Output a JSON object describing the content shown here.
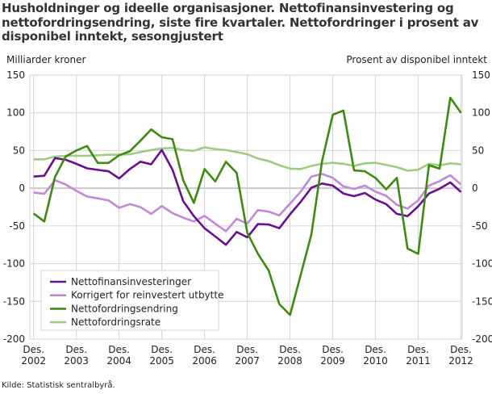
{
  "chart_data": {
    "type": "line",
    "title": "Husholdninger og ideelle organisasjoner. Nettofinansinvestering og nettofordringsendring, siste fire kvartaler. Nettofordringer i prosent av disponibel inntekt, sesongjustert",
    "ylabel_left": "Milliarder kroner",
    "ylabel_right": "Prosent av disponibel inntekt",
    "ylim": [
      -200,
      150
    ],
    "yticks": [
      150,
      100,
      50,
      0,
      -50,
      -100,
      -150,
      -200
    ],
    "xticks": [
      [
        "Des.",
        "2002"
      ],
      [
        "Des.",
        "2003"
      ],
      [
        "Des.",
        "2004"
      ],
      [
        "Des.",
        "2005"
      ],
      [
        "Des.",
        "2006"
      ],
      [
        "Des.",
        "2007"
      ],
      [
        "Des.",
        "2008"
      ],
      [
        "Des.",
        "2009"
      ],
      [
        "Des.",
        "2010"
      ],
      [
        "Des.",
        "2011"
      ],
      [
        "Des.",
        "2012"
      ]
    ],
    "x_start": "2002Q4",
    "x_end": "2012Q4",
    "grid": true,
    "legend_position": "bottom-left",
    "series": [
      {
        "name": "Nettofinansinvesteringer",
        "color": "#6a0f8e",
        "values": [
          15.5,
          16.5,
          40,
          37.7,
          32.4,
          26.4,
          24.3,
          22.5,
          13,
          25.4,
          35.2,
          31.7,
          50.7,
          24.6,
          -17,
          -37,
          -53,
          -64,
          -75,
          -58,
          -65,
          -47.5,
          -48,
          -53,
          -34.5,
          -18,
          0.7,
          6.3,
          3.5,
          -7,
          -10.6,
          -6.3,
          -15,
          -21,
          -34,
          -37,
          -24,
          -7,
          -0.7,
          7.7,
          -5
        ]
      },
      {
        "name": "Korrigert for reinvestert utbytte",
        "color": "#c08ad6",
        "values": [
          -5.6,
          -7.4,
          10.6,
          5,
          -3.5,
          -11,
          -13.4,
          -16,
          -26,
          -21,
          -25,
          -34,
          -23.6,
          -33,
          -39,
          -44,
          -36.6,
          -47,
          -57,
          -40.5,
          -47,
          -29,
          -31,
          -36,
          -20.4,
          -4.6,
          15.5,
          19,
          13.7,
          2.5,
          -1,
          3.5,
          -4.6,
          -10,
          -22,
          -27,
          -16,
          3.5,
          9.5,
          17.3,
          5
        ]
      },
      {
        "name": "Nettofordringsendring",
        "color": "#3f8a0f",
        "values": [
          -33.5,
          -44,
          15,
          42,
          50,
          56,
          33.5,
          33.5,
          43.7,
          49,
          63,
          78,
          67.6,
          65,
          10.6,
          -19.4,
          25.4,
          9,
          35,
          20.4,
          -59,
          -87,
          -109,
          -153.5,
          -168,
          -115,
          -61,
          36,
          97.5,
          103,
          23.6,
          22.5,
          13.7,
          -1.4,
          13.7,
          -80,
          -87,
          30.6,
          26,
          120,
          100
        ]
      },
      {
        "name": "Nettofordringsrate",
        "color": "#9dcc85",
        "values": [
          38.4,
          38.4,
          42,
          43,
          43,
          43,
          43.7,
          44.4,
          44.4,
          45,
          48,
          50.7,
          52.8,
          53.5,
          50.7,
          49.6,
          54.2,
          51.8,
          50.7,
          48,
          45,
          39.4,
          36,
          30.6,
          26,
          25.4,
          29.6,
          32.4,
          33.8,
          32.4,
          29.6,
          33,
          33.8,
          31,
          28,
          23.2,
          24.6,
          32.4,
          30.3,
          33,
          31.7
        ]
      }
    ]
  },
  "source": "Kilde: Statistisk sentralbyrå."
}
